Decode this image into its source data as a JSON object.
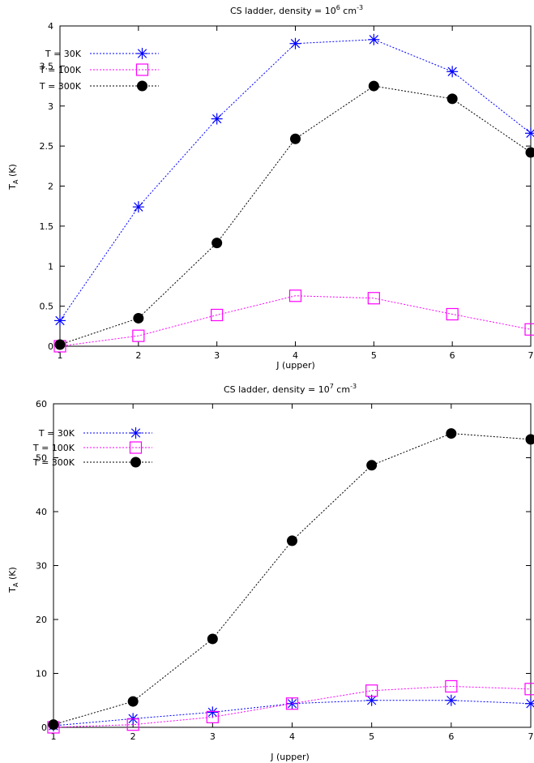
{
  "chart_data": [
    {
      "type": "line",
      "title": "CS ladder, density = 10",
      "title_sup": "6",
      "title_unit": " cm",
      "title_unit_sup": "-3",
      "xlabel": "J (upper)",
      "ylabel": "T",
      "ylabel_sub": "A",
      "ylabel_unit": " (K)",
      "xlim": [
        1,
        7
      ],
      "ylim": [
        0,
        4
      ],
      "xticks": [
        "1",
        "2",
        "3",
        "4",
        "5",
        "6",
        "7"
      ],
      "yticks": [
        "0",
        "0.5",
        "1",
        "1.5",
        "2",
        "2.5",
        "3",
        "3.5",
        "4"
      ],
      "ytick_values": [
        0,
        0.5,
        1,
        1.5,
        2,
        2.5,
        3,
        3.5,
        4
      ],
      "legend_position": "top-left",
      "grid": false,
      "x": [
        1,
        2,
        3,
        4,
        5,
        6,
        7
      ],
      "series": [
        {
          "name": "T = 30K",
          "color": "#0000ff",
          "marker": "star",
          "values": [
            0.32,
            1.74,
            2.84,
            3.78,
            3.83,
            3.43,
            2.66
          ]
        },
        {
          "name": "T = 100K",
          "color": "#ff00ff",
          "marker": "open-square",
          "values": [
            0.0,
            0.13,
            0.39,
            0.63,
            0.6,
            0.4,
            0.21
          ]
        },
        {
          "name": "T = 300K",
          "color": "#000000",
          "marker": "filled-circle",
          "values": [
            0.02,
            0.35,
            1.29,
            2.59,
            3.25,
            3.09,
            2.42
          ]
        }
      ]
    },
    {
      "type": "line",
      "title": "CS ladder, density = 10",
      "title_sup": "7",
      "title_unit": " cm",
      "title_unit_sup": "-3",
      "xlabel": "J (upper)",
      "ylabel": "T",
      "ylabel_sub": "A",
      "ylabel_unit": " (K)",
      "xlim": [
        1,
        7
      ],
      "ylim": [
        0,
        60
      ],
      "xticks": [
        "1",
        "2",
        "3",
        "4",
        "5",
        "6",
        "7"
      ],
      "yticks": [
        "0",
        "10",
        "20",
        "30",
        "40",
        "50",
        "60"
      ],
      "ytick_values": [
        0,
        10,
        20,
        30,
        40,
        50,
        60
      ],
      "legend_position": "top-left",
      "grid": false,
      "x": [
        1,
        2,
        3,
        4,
        5,
        6,
        7
      ],
      "series": [
        {
          "name": "T = 30K",
          "color": "#0000ff",
          "marker": "star",
          "values": [
            0.3,
            1.6,
            2.8,
            4.4,
            5.0,
            5.0,
            4.4
          ]
        },
        {
          "name": "T = 100K",
          "color": "#ff00ff",
          "marker": "open-square",
          "values": [
            0.0,
            0.5,
            1.9,
            4.4,
            6.8,
            7.6,
            7.1
          ]
        },
        {
          "name": "T = 300K",
          "color": "#000000",
          "marker": "filled-circle",
          "values": [
            0.5,
            4.8,
            16.4,
            34.6,
            48.6,
            54.5,
            53.4
          ]
        }
      ]
    }
  ]
}
